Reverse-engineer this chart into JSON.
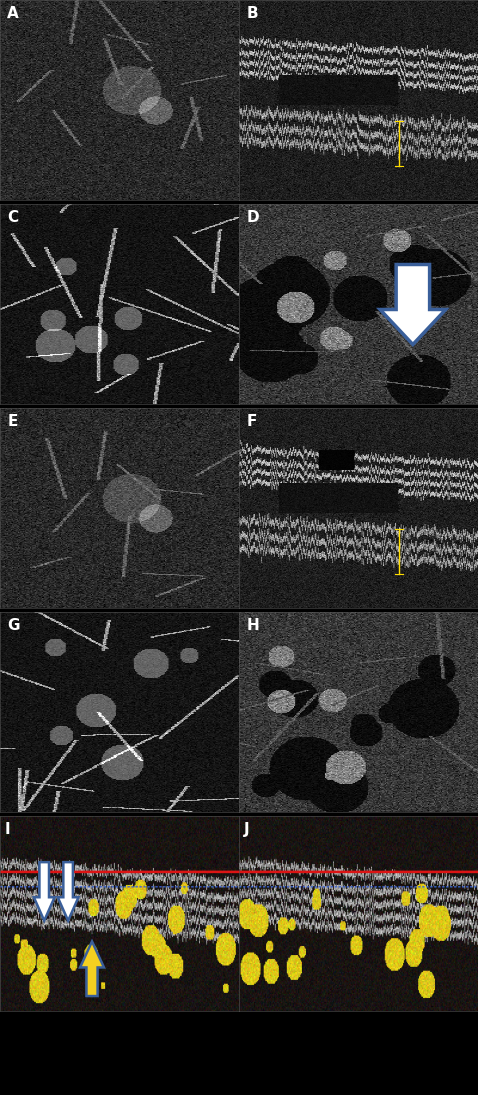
{
  "figure_width": 4.78,
  "figure_height": 10.95,
  "dpi": 100,
  "background_color": "#000000",
  "border_color": "#ffffff",
  "label_fontsize": 11,
  "arrow_white_color": "#ffffff",
  "arrow_blue_outline": "#4a6fa5",
  "arrow_yellow_color": "#f5d020"
}
